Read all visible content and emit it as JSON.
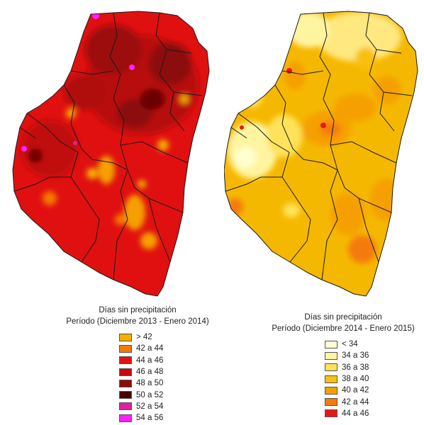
{
  "maps": [
    {
      "legend_title": "Días sin precipitación",
      "legend_subtitle": "Período (Diciembre 2013 - Enero 2014)",
      "base_color": "#e01010",
      "legend": [
        {
          "label": "> 42",
          "color": "#f5b000"
        },
        {
          "label": "42 a 44",
          "color": "#f57a00"
        },
        {
          "label": "44 a 46",
          "color": "#e81010"
        },
        {
          "label": "46 a 48",
          "color": "#c80a0a"
        },
        {
          "label": "48 a 50",
          "color": "#8c0a0a"
        },
        {
          "label": "50 a 52",
          "color": "#4a0000"
        },
        {
          "label": "52 a 54",
          "color": "#e020a0"
        },
        {
          "label": "54 a 56",
          "color": "#ff20ff"
        }
      ]
    },
    {
      "legend_title": "Días sin precipitación",
      "legend_subtitle": "Período (Diciembre 2014 - Enero 2015)",
      "base_color": "#f5b800",
      "legend": [
        {
          "label": "< 34",
          "color": "#ffffd0"
        },
        {
          "label": "34 a 36",
          "color": "#fff4a0"
        },
        {
          "label": "36 a 38",
          "color": "#ffe25a"
        },
        {
          "label": "38 a 40",
          "color": "#f8c010"
        },
        {
          "label": "40 a 42",
          "color": "#f5a000"
        },
        {
          "label": "42 a 44",
          "color": "#f57a10"
        },
        {
          "label": "44 a 46",
          "color": "#e81818"
        }
      ]
    }
  ]
}
